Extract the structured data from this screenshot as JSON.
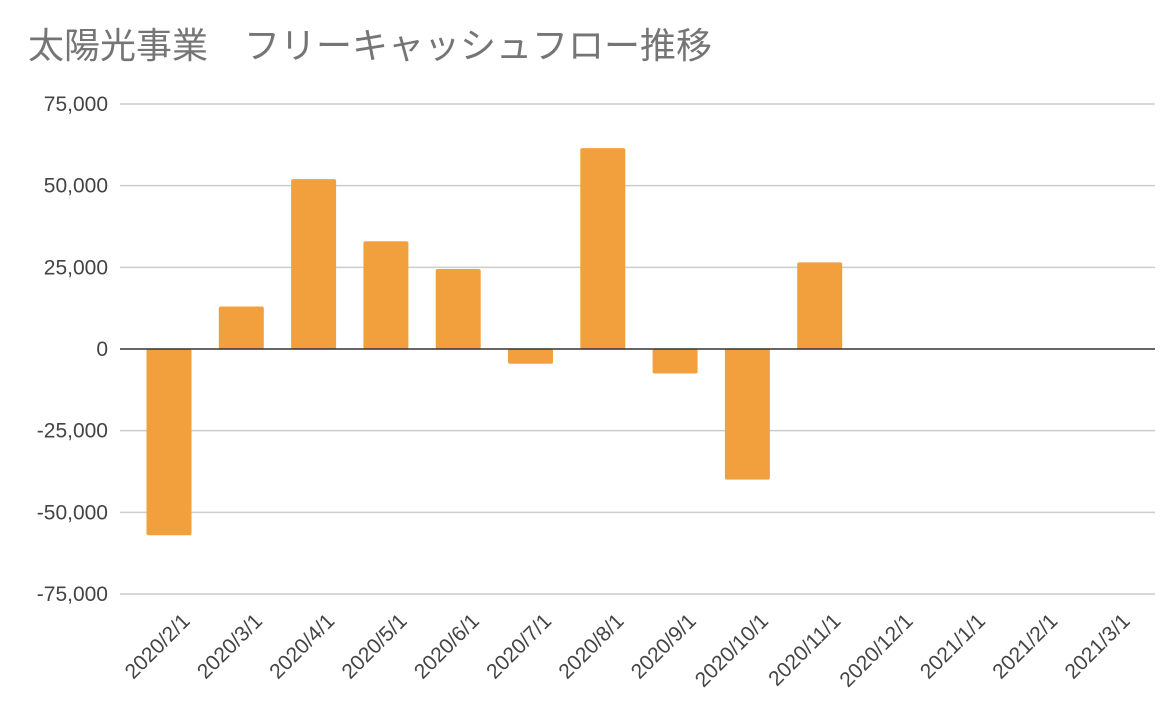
{
  "chart_data": {
    "type": "bar",
    "title": "太陽光事業　フリーキャッシュフロー推移",
    "xlabel": "",
    "ylabel": "",
    "categories": [
      "2020/2/1",
      "2020/3/1",
      "2020/4/1",
      "2020/5/1",
      "2020/6/1",
      "2020/7/1",
      "2020/8/1",
      "2020/9/1",
      "2020/10/1",
      "2020/11/1",
      "2020/12/1",
      "2021/1/1",
      "2021/2/1",
      "2021/3/1"
    ],
    "series": [
      {
        "name": "フリーキャッシュフロー",
        "values": [
          -57000,
          13000,
          52000,
          33000,
          24500,
          -4500,
          61500,
          -7500,
          -40000,
          26500,
          0,
          0,
          0,
          0
        ]
      }
    ],
    "ylim": [
      -75000,
      75000
    ],
    "yticks": [
      {
        "value": 75000,
        "label": "75,000"
      },
      {
        "value": 50000,
        "label": "50,000"
      },
      {
        "value": 25000,
        "label": "25,000"
      },
      {
        "value": 0,
        "label": "0"
      },
      {
        "value": -25000,
        "label": "-25,000"
      },
      {
        "value": -50000,
        "label": "-50,000"
      },
      {
        "value": -75000,
        "label": "-75,000"
      }
    ],
    "grid": true,
    "legend": "none",
    "bar_color": "#f2a03d"
  }
}
